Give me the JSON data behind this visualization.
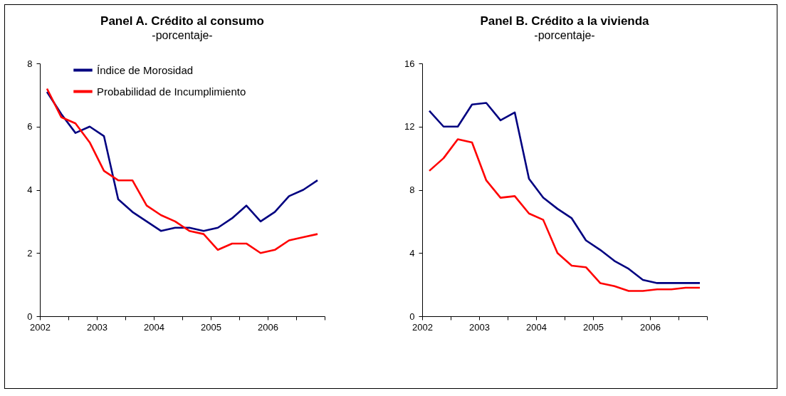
{
  "chart_data": [
    {
      "type": "line",
      "title": "Panel A. Crédito al consumo",
      "subtitle": "-porcentaje-",
      "x": [
        2002.125,
        2002.375,
        2002.625,
        2002.875,
        2003.125,
        2003.375,
        2003.625,
        2003.875,
        2004.125,
        2004.375,
        2004.625,
        2004.875,
        2005.125,
        2005.375,
        2005.625,
        2005.875,
        2006.125,
        2006.375,
        2006.625,
        2006.875
      ],
      "series": [
        {
          "name": "Índice de Morosidad",
          "color": "#000080",
          "values": [
            7.1,
            6.4,
            5.8,
            6.0,
            5.7,
            3.7,
            3.3,
            3.0,
            2.7,
            2.8,
            2.8,
            2.7,
            2.8,
            3.1,
            3.5,
            3.0,
            3.3,
            3.8,
            4.0,
            4.3
          ]
        },
        {
          "name": "Probabilidad de Incumplimiento",
          "color": "#ff0000",
          "values": [
            7.2,
            6.3,
            6.1,
            5.5,
            4.6,
            4.3,
            4.3,
            3.5,
            3.2,
            3.0,
            2.7,
            2.6,
            2.1,
            2.3,
            2.3,
            2.0,
            2.1,
            2.4,
            2.5,
            2.6
          ]
        }
      ],
      "xlim": [
        2002,
        2007
      ],
      "xticks": [
        2002,
        {
          "value": 2002.5,
          "label": null
        },
        2003,
        {
          "value": 2003.5,
          "label": null
        },
        2004,
        {
          "value": 2004.5,
          "label": null
        },
        2005,
        {
          "value": 2005.5,
          "label": null
        },
        2006,
        {
          "value": 2006.5,
          "label": null
        },
        {
          "value": 2007,
          "label": null
        }
      ],
      "ylim": [
        0,
        8
      ],
      "yticks": [
        0,
        2,
        4,
        6,
        8
      ],
      "legend": "top left"
    },
    {
      "type": "line",
      "title": "Panel B. Crédito a la vivienda",
      "subtitle": "-porcentaje-",
      "x": [
        2002.125,
        2002.375,
        2002.625,
        2002.875,
        2003.125,
        2003.375,
        2003.625,
        2003.875,
        2004.125,
        2004.375,
        2004.625,
        2004.875,
        2005.125,
        2005.375,
        2005.625,
        2005.875,
        2006.125,
        2006.375,
        2006.625,
        2006.875
      ],
      "series": [
        {
          "name": "Índice de Morosidad",
          "color": "#000080",
          "values": [
            13.0,
            12.0,
            12.0,
            13.4,
            13.5,
            12.4,
            12.9,
            8.7,
            7.5,
            6.8,
            6.2,
            4.8,
            4.2,
            3.5,
            3.0,
            2.3,
            2.1,
            2.1,
            2.1,
            2.1
          ]
        },
        {
          "name": "Probabilidad de Incumplimiento",
          "color": "#ff0000",
          "values": [
            9.2,
            10.0,
            11.2,
            11.0,
            8.6,
            7.5,
            7.6,
            6.5,
            6.1,
            4.0,
            3.2,
            3.1,
            2.1,
            1.9,
            1.6,
            1.6,
            1.7,
            1.7,
            1.8,
            1.8
          ]
        }
      ],
      "xlim": [
        2002,
        2007
      ],
      "xticks": [
        2002,
        {
          "value": 2002.5,
          "label": null
        },
        2003,
        {
          "value": 2003.5,
          "label": null
        },
        2004,
        {
          "value": 2004.5,
          "label": null
        },
        2005,
        {
          "value": 2005.5,
          "label": null
        },
        2006,
        {
          "value": 2006.5,
          "label": null
        },
        {
          "value": 2007,
          "label": null
        }
      ],
      "ylim": [
        0,
        16
      ],
      "yticks": [
        0,
        4,
        8,
        12,
        16
      ],
      "legend": "top left"
    }
  ]
}
